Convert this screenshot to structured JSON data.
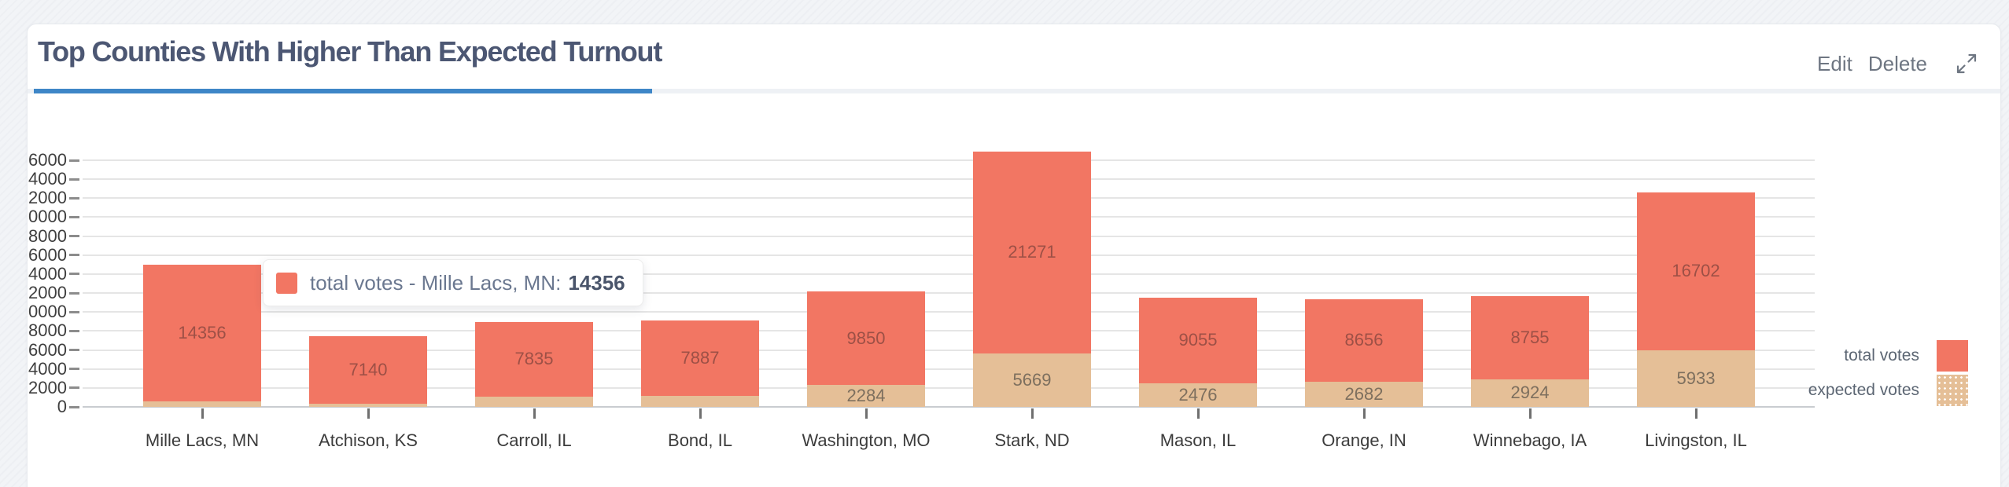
{
  "header": {
    "title": "Top Counties With Higher Than Expected Turnout",
    "actions": {
      "edit": "Edit",
      "delete": "Delete"
    }
  },
  "tooltip": {
    "series": "total votes",
    "category": "Mille Lacs, MN",
    "label": "total votes - Mille Lacs, MN:",
    "value": "14356"
  },
  "legend": {
    "position": "right",
    "items": [
      {
        "label": "total votes",
        "color": "#F27663"
      },
      {
        "label": "expected votes",
        "color": "#E5BF97"
      }
    ]
  },
  "colors": {
    "accent_blue": "#3E86C7",
    "total_votes_bar": "#F27663",
    "expected_votes_bar": "#E5BF97",
    "gridline": "#e5e5e5",
    "axis_line": "#c9ccd0",
    "title_text": "#4C5773"
  },
  "chart_data": {
    "type": "bar",
    "stacked": true,
    "title": "Top Counties With Higher Than Expected Turnout",
    "categories": [
      "Mille Lacs, MN",
      "Atchison, KS",
      "Carroll, IL",
      "Bond, IL",
      "Washington, MO",
      "Stark, ND",
      "Mason, IL",
      "Orange, IN",
      "Winnebago, IA",
      "Livingston, IL"
    ],
    "series": [
      {
        "name": "expected votes",
        "color": "#E5BF97",
        "values": [
          600,
          300,
          1100,
          1200,
          2284,
          5669,
          2476,
          2682,
          2924,
          5933
        ],
        "labels": [
          null,
          null,
          null,
          null,
          "2284",
          "5669",
          "2476",
          "2682",
          "2924",
          "5933"
        ]
      },
      {
        "name": "total votes",
        "color": "#F27663",
        "values": [
          14356,
          7140,
          7835,
          7887,
          9850,
          21271,
          9055,
          8656,
          8755,
          16702
        ],
        "labels": [
          "14356",
          "7140",
          "7835",
          "7887",
          "9850",
          "21271",
          "9055",
          "8656",
          "8755",
          "16702"
        ]
      }
    ],
    "xlabel": "",
    "ylabel": "",
    "ylim": [
      0,
      26000
    ],
    "ytick_step": 2000,
    "grid": true,
    "legend_position": "right"
  }
}
